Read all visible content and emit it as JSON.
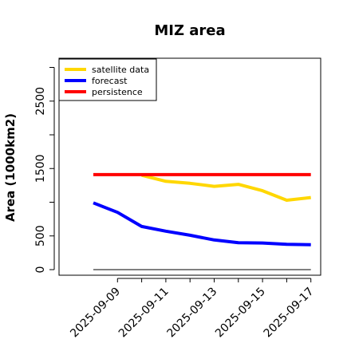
{
  "chart_data": {
    "type": "line",
    "title": "MIZ area",
    "xlabel": "",
    "ylabel": "Area (1000km2)",
    "x": [
      "2025-09-08",
      "2025-09-09",
      "2025-09-10",
      "2025-09-11",
      "2025-09-12",
      "2025-09-13",
      "2025-09-14",
      "2025-09-15",
      "2025-09-16",
      "2025-09-17"
    ],
    "xticks": [
      "2025-09-09",
      "2025-09-11",
      "2025-09-13",
      "2025-09-15",
      "2025-09-17"
    ],
    "highlight_tick": "2025-09-09",
    "yticks": [
      0,
      500,
      1500,
      2500
    ],
    "ylim": [
      0,
      3100
    ],
    "reference_line": 0,
    "legend_position": "top-left",
    "series": [
      {
        "name": "satellite data",
        "color": "#ffd700",
        "values": [
          null,
          null,
          1400,
          1310,
          1280,
          1235,
          1265,
          1170,
          1030,
          1070
        ]
      },
      {
        "name": "forecast",
        "color": "#0000ff",
        "values": [
          990,
          850,
          640,
          570,
          510,
          440,
          400,
          395,
          375,
          370
        ]
      },
      {
        "name": "persistence",
        "color": "#ff0000",
        "values": [
          1410,
          1410,
          1410,
          1410,
          1410,
          1410,
          1410,
          1410,
          1410,
          1410
        ]
      }
    ]
  },
  "colors": {
    "axis": "#000000",
    "reference": "#808080",
    "highlight_tick": "#228b22"
  }
}
